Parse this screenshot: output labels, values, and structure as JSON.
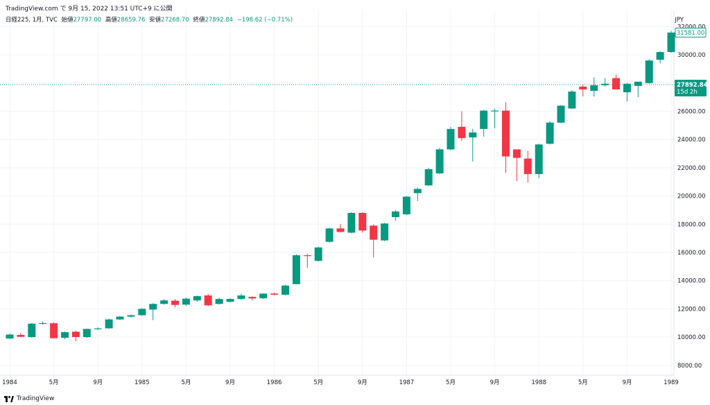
{
  "caption": "TradingView.com で 9月 15, 2022 13:51 UTC+9 に公開",
  "legend": {
    "symbol": "日経225, 1月, TVC",
    "open_label": "始値",
    "open": "27797.00",
    "high_label": "高値",
    "high": "28659.76",
    "low_label": "安値",
    "low": "27268.70",
    "close_label": "終値",
    "close": "27892.84",
    "change": "−198.62 (−0.71%)"
  },
  "currency": "JPY",
  "footer": {
    "brand": "TradingView"
  },
  "colors": {
    "up": "#089981",
    "down": "#f23645",
    "grid": "#f0f3fa",
    "axis": "#131722"
  },
  "price_tags": {
    "last_visible": "31581.00",
    "current": "27892.84",
    "countdown": "15d 2h"
  },
  "chart_data": {
    "type": "candlestick",
    "title": "日経225, 1月, TVC",
    "y_ticks": [
      8000,
      10000,
      12000,
      14000,
      16000,
      18000,
      20000,
      22000,
      24000,
      26000,
      28000,
      30000,
      32000
    ],
    "y_tick_labels": [
      "8000.00",
      "10000.00",
      "12000.00",
      "14000.00",
      "16000.00",
      "18000.00",
      "20000.00",
      "22000.00",
      "24000.00",
      "26000.00",
      "28000.00",
      "30000.00",
      "32000.00"
    ],
    "ylim": [
      7300,
      33200
    ],
    "x_ticks": [
      {
        "index": 0,
        "label": "1984"
      },
      {
        "index": 4,
        "label": "5月"
      },
      {
        "index": 8,
        "label": "9月"
      },
      {
        "index": 12,
        "label": "1985"
      },
      {
        "index": 16,
        "label": "5月"
      },
      {
        "index": 20,
        "label": "9月"
      },
      {
        "index": 24,
        "label": "1986"
      },
      {
        "index": 28,
        "label": "5月"
      },
      {
        "index": 32,
        "label": "9月"
      },
      {
        "index": 36,
        "label": "1987"
      },
      {
        "index": 40,
        "label": "5月"
      },
      {
        "index": 44,
        "label": "9月"
      },
      {
        "index": 48,
        "label": "1988"
      },
      {
        "index": 52,
        "label": "5月"
      },
      {
        "index": 56,
        "label": "9月"
      },
      {
        "index": 60,
        "label": "1989"
      }
    ],
    "current_price": 27892.84,
    "last_close": 31581.0,
    "candles": [
      {
        "o": 9900,
        "h": 10250,
        "l": 9850,
        "c": 10180
      },
      {
        "o": 10150,
        "h": 10300,
        "l": 10000,
        "c": 10020
      },
      {
        "o": 10000,
        "h": 11000,
        "l": 9950,
        "c": 10950
      },
      {
        "o": 10950,
        "h": 11120,
        "l": 10880,
        "c": 10990
      },
      {
        "o": 10980,
        "h": 11050,
        "l": 9900,
        "c": 9920
      },
      {
        "o": 9950,
        "h": 10400,
        "l": 9850,
        "c": 10350
      },
      {
        "o": 10380,
        "h": 10450,
        "l": 9720,
        "c": 10000
      },
      {
        "o": 10000,
        "h": 10600,
        "l": 9950,
        "c": 10580
      },
      {
        "o": 10570,
        "h": 10680,
        "l": 10500,
        "c": 10620
      },
      {
        "o": 10620,
        "h": 11300,
        "l": 10580,
        "c": 11250
      },
      {
        "o": 11250,
        "h": 11500,
        "l": 11200,
        "c": 11450
      },
      {
        "o": 11450,
        "h": 11600,
        "l": 11380,
        "c": 11550
      },
      {
        "o": 11550,
        "h": 12050,
        "l": 11500,
        "c": 12000
      },
      {
        "o": 11950,
        "h": 12400,
        "l": 11200,
        "c": 12350
      },
      {
        "o": 12350,
        "h": 12700,
        "l": 12300,
        "c": 12600
      },
      {
        "o": 12580,
        "h": 12700,
        "l": 12100,
        "c": 12280
      },
      {
        "o": 12300,
        "h": 12800,
        "l": 12200,
        "c": 12720
      },
      {
        "o": 12600,
        "h": 12950,
        "l": 12500,
        "c": 12900
      },
      {
        "o": 12950,
        "h": 13050,
        "l": 12200,
        "c": 12250
      },
      {
        "o": 12350,
        "h": 12800,
        "l": 12300,
        "c": 12700
      },
      {
        "o": 12500,
        "h": 12750,
        "l": 12450,
        "c": 12700
      },
      {
        "o": 12700,
        "h": 13080,
        "l": 12650,
        "c": 12950
      },
      {
        "o": 12850,
        "h": 12880,
        "l": 12600,
        "c": 12740
      },
      {
        "o": 12750,
        "h": 13100,
        "l": 12700,
        "c": 13080
      },
      {
        "o": 13080,
        "h": 13150,
        "l": 12950,
        "c": 13000
      },
      {
        "o": 13000,
        "h": 13700,
        "l": 12950,
        "c": 13650
      },
      {
        "o": 13750,
        "h": 15850,
        "l": 13750,
        "c": 15800
      },
      {
        "o": 15800,
        "h": 15900,
        "l": 14900,
        "c": 15750
      },
      {
        "o": 15400,
        "h": 16400,
        "l": 15350,
        "c": 16350
      },
      {
        "o": 16750,
        "h": 17750,
        "l": 16700,
        "c": 17700
      },
      {
        "o": 17700,
        "h": 18000,
        "l": 17400,
        "c": 17450
      },
      {
        "o": 17400,
        "h": 18850,
        "l": 17350,
        "c": 18800
      },
      {
        "o": 18800,
        "h": 18850,
        "l": 17400,
        "c": 17550
      },
      {
        "o": 17900,
        "h": 18000,
        "l": 15650,
        "c": 16900
      },
      {
        "o": 16850,
        "h": 18100,
        "l": 16800,
        "c": 18050
      },
      {
        "o": 18500,
        "h": 19000,
        "l": 18250,
        "c": 18900
      },
      {
        "o": 18700,
        "h": 20000,
        "l": 18650,
        "c": 19950
      },
      {
        "o": 20200,
        "h": 20600,
        "l": 19650,
        "c": 20500
      },
      {
        "o": 20750,
        "h": 22000,
        "l": 20700,
        "c": 21900
      },
      {
        "o": 21600,
        "h": 23400,
        "l": 21550,
        "c": 23300
      },
      {
        "o": 23300,
        "h": 24900,
        "l": 23250,
        "c": 24750
      },
      {
        "o": 24900,
        "h": 26000,
        "l": 23900,
        "c": 24100
      },
      {
        "o": 24150,
        "h": 24750,
        "l": 22450,
        "c": 24500
      },
      {
        "o": 24750,
        "h": 26100,
        "l": 24200,
        "c": 26050
      },
      {
        "o": 26000,
        "h": 26200,
        "l": 24800,
        "c": 26050
      },
      {
        "o": 26050,
        "h": 26650,
        "l": 21650,
        "c": 22800
      },
      {
        "o": 23300,
        "h": 23300,
        "l": 21050,
        "c": 22700
      },
      {
        "o": 22650,
        "h": 23200,
        "l": 20950,
        "c": 21550
      },
      {
        "o": 21550,
        "h": 23700,
        "l": 21250,
        "c": 23650
      },
      {
        "o": 23700,
        "h": 25300,
        "l": 23650,
        "c": 25200
      },
      {
        "o": 25200,
        "h": 26450,
        "l": 25150,
        "c": 26400
      },
      {
        "o": 26200,
        "h": 27500,
        "l": 26150,
        "c": 27400
      },
      {
        "o": 27750,
        "h": 27900,
        "l": 27050,
        "c": 27550
      },
      {
        "o": 27450,
        "h": 28400,
        "l": 27050,
        "c": 27850
      },
      {
        "o": 27850,
        "h": 28350,
        "l": 27750,
        "c": 27950
      },
      {
        "o": 28350,
        "h": 28600,
        "l": 27550,
        "c": 27550
      },
      {
        "o": 27350,
        "h": 28000,
        "l": 26700,
        "c": 27950
      },
      {
        "o": 27800,
        "h": 28050,
        "l": 27000,
        "c": 28100
      },
      {
        "o": 28000,
        "h": 29700,
        "l": 27950,
        "c": 29600
      },
      {
        "o": 29650,
        "h": 30250,
        "l": 29400,
        "c": 30200
      },
      {
        "o": 30200,
        "h": 31700,
        "l": 30150,
        "c": 31581
      }
    ]
  }
}
